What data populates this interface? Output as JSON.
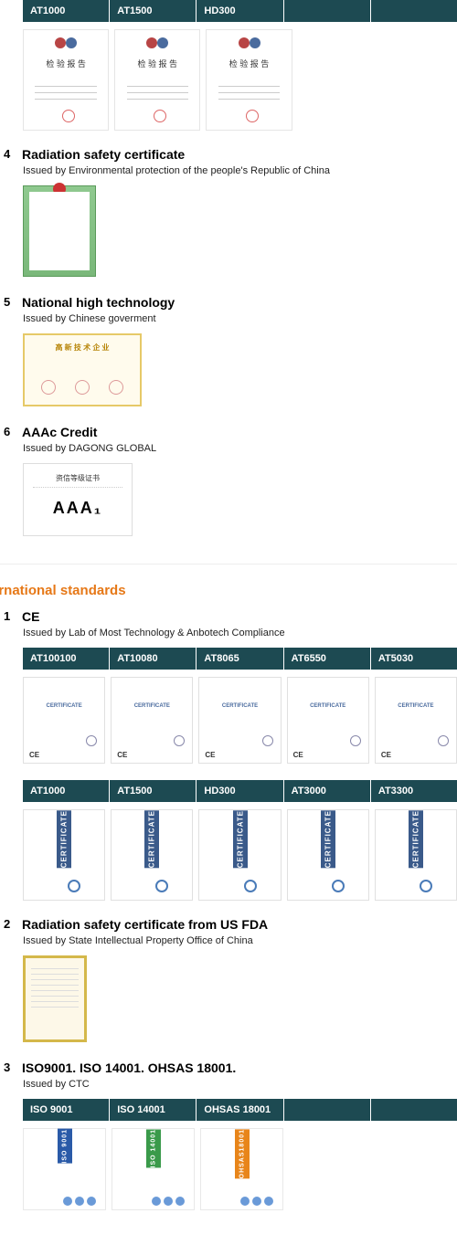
{
  "top": {
    "headers": [
      "AT1000",
      "AT1500",
      "HD300",
      "",
      ""
    ],
    "report_title_cn": "检 验 报 告"
  },
  "sections": [
    {
      "num": "4",
      "title": "Radiation safety certificate",
      "sub": "Issued by Environmental protection of the people's Republic of China"
    },
    {
      "num": "5",
      "title": "National high technology",
      "sub": "Issued by Chinese goverment",
      "tech_header": "高 新 技 术 企 业"
    },
    {
      "num": "6",
      "title": "AAAc Credit",
      "sub": "Issued by DAGONG GLOBAL",
      "aaa_title": "资信等级证书",
      "aaa_value": "AAA₁"
    }
  ],
  "intl_heading": "ernational standards",
  "intl_sections": [
    {
      "num": "1",
      "title": "CE",
      "sub": "Issued by Lab of Most Technology & Anbotech Compliance",
      "headers1": [
        "AT100100",
        "AT10080",
        "AT8065",
        "AT6550",
        "AT5030"
      ],
      "headers2": [
        "AT1000",
        "AT1500",
        "HD300",
        "AT3000",
        "AT3300"
      ],
      "ce_mark": "CE",
      "cert_sidebar": "CERTIFICATE"
    },
    {
      "num": "2",
      "title": "Radiation safety certificate from US FDA",
      "sub": "Issued by State Intellectual Property Office of China"
    },
    {
      "num": "3",
      "title": "ISO9001. ISO 14001. OHSAS 18001.",
      "sub": "Issued by CTC",
      "headers": [
        "ISO 9001",
        "ISO 14001",
        "OHSAS 18001",
        "",
        ""
      ],
      "iso_labels": [
        "ISO 9001",
        "ISO 14001",
        "OHSAS18001"
      ]
    }
  ]
}
